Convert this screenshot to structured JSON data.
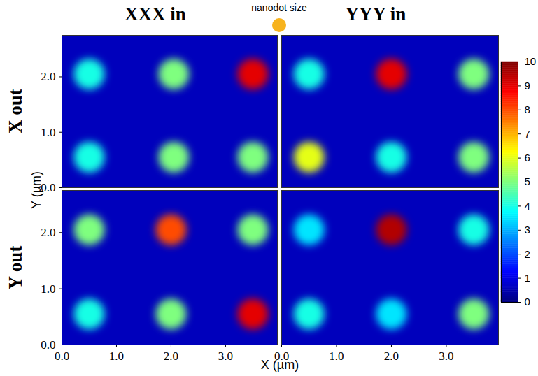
{
  "chart_data": {
    "type": "heatmap",
    "columns": [
      "XXX in",
      "YYY in"
    ],
    "rows": [
      "X out",
      "Y out"
    ],
    "annotation": "nanodot size",
    "xlabel": "X (µm)",
    "ylabel": "Y (µm)",
    "xlim": [
      0,
      3.95
    ],
    "ylim": [
      0,
      2.75
    ],
    "xticks": [
      0,
      1,
      2,
      3
    ],
    "yticks": [
      0,
      1,
      2
    ],
    "background_value": 0.6,
    "colorbar": {
      "range": [
        0,
        10
      ],
      "ticks": [
        0,
        1,
        2,
        3,
        4,
        5,
        6,
        7,
        8,
        9,
        10
      ]
    },
    "panels": [
      {
        "column": "XXX in",
        "row": "X out",
        "spots": [
          {
            "x": 0.5,
            "y": 2.05,
            "value": 4
          },
          {
            "x": 2.05,
            "y": 2.05,
            "value": 5
          },
          {
            "x": 3.5,
            "y": 2.05,
            "value": 9
          },
          {
            "x": 0.5,
            "y": 0.55,
            "value": 4
          },
          {
            "x": 2.05,
            "y": 0.55,
            "value": 5
          },
          {
            "x": 3.5,
            "y": 0.55,
            "value": 5
          }
        ]
      },
      {
        "column": "YYY in",
        "row": "X out",
        "spots": [
          {
            "x": 0.5,
            "y": 2.05,
            "value": 4
          },
          {
            "x": 2.0,
            "y": 2.05,
            "value": 9
          },
          {
            "x": 3.5,
            "y": 2.05,
            "value": 5
          },
          {
            "x": 0.5,
            "y": 0.55,
            "value": 6
          },
          {
            "x": 2.0,
            "y": 0.55,
            "value": 4
          },
          {
            "x": 3.5,
            "y": 0.55,
            "value": 5
          }
        ]
      },
      {
        "column": "XXX in",
        "row": "Y out",
        "spots": [
          {
            "x": 0.5,
            "y": 2.05,
            "value": 5
          },
          {
            "x": 2.0,
            "y": 2.05,
            "value": 8
          },
          {
            "x": 3.5,
            "y": 2.05,
            "value": 5
          },
          {
            "x": 0.5,
            "y": 0.55,
            "value": 4
          },
          {
            "x": 2.0,
            "y": 0.55,
            "value": 5
          },
          {
            "x": 3.5,
            "y": 0.55,
            "value": 9
          }
        ]
      },
      {
        "column": "YYY in",
        "row": "Y out",
        "spots": [
          {
            "x": 0.5,
            "y": 2.05,
            "value": 3.5
          },
          {
            "x": 2.0,
            "y": 2.05,
            "value": 9.5
          },
          {
            "x": 3.5,
            "y": 2.05,
            "value": 4
          },
          {
            "x": 0.5,
            "y": 0.55,
            "value": 4
          },
          {
            "x": 2.0,
            "y": 0.55,
            "value": 3.5
          },
          {
            "x": 3.5,
            "y": 0.55,
            "value": 5
          }
        ]
      }
    ]
  }
}
